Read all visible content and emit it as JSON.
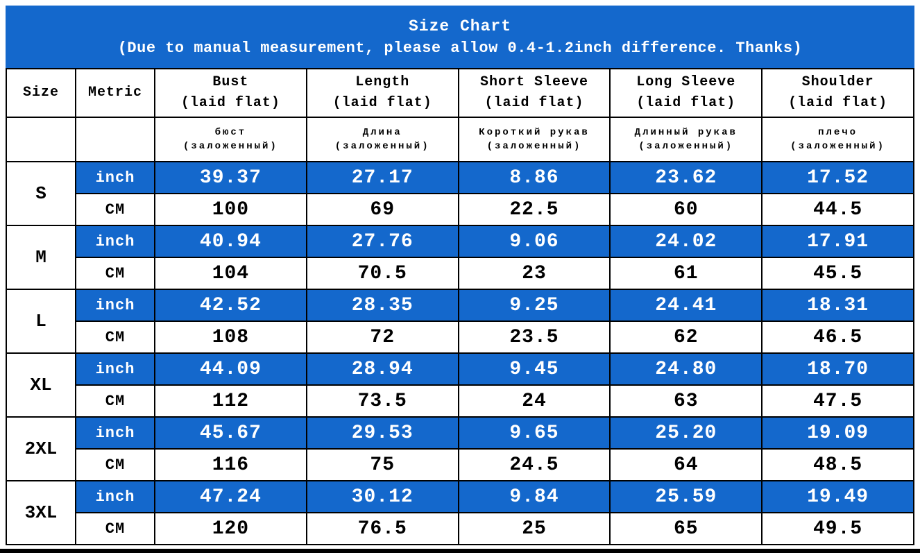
{
  "colors": {
    "banner_bg": "#1468cc",
    "banner_text": "#ffffff",
    "inch_row_bg": "#1468cc",
    "inch_row_text": "#ffffff",
    "border": "#000000"
  },
  "chart_data": {
    "type": "table",
    "title": "Size Chart",
    "subtitle": "(Due to manual measurement, please allow 0.4-1.2inch difference. Thanks)",
    "columns": [
      {
        "en": "Size",
        "en_sub": "",
        "ru": "",
        "ru_sub": ""
      },
      {
        "en": "Metric",
        "en_sub": "",
        "ru": "",
        "ru_sub": ""
      },
      {
        "en": "Bust",
        "en_sub": "(laid flat)",
        "ru": "бюст",
        "ru_sub": "(заложенный)"
      },
      {
        "en": "Length",
        "en_sub": "(laid flat)",
        "ru": "Длина",
        "ru_sub": "(заложенный)"
      },
      {
        "en": "Short Sleeve",
        "en_sub": "(laid flat)",
        "ru": "Короткий рукав",
        "ru_sub": "(заложенный)"
      },
      {
        "en": "Long Sleeve",
        "en_sub": "(laid flat)",
        "ru": "Длинный рукав",
        "ru_sub": "(заложенный)"
      },
      {
        "en": "Shoulder",
        "en_sub": "(laid flat)",
        "ru": "плечо",
        "ru_sub": "(заложенный)"
      }
    ],
    "metric_labels": {
      "inch": "inch",
      "cm": "CM"
    },
    "sizes": [
      {
        "size": "S",
        "inch": [
          "39.37",
          "27.17",
          "8.86",
          "23.62",
          "17.52"
        ],
        "cm": [
          "100",
          "69",
          "22.5",
          "60",
          "44.5"
        ]
      },
      {
        "size": "M",
        "inch": [
          "40.94",
          "27.76",
          "9.06",
          "24.02",
          "17.91"
        ],
        "cm": [
          "104",
          "70.5",
          "23",
          "61",
          "45.5"
        ]
      },
      {
        "size": "L",
        "inch": [
          "42.52",
          "28.35",
          "9.25",
          "24.41",
          "18.31"
        ],
        "cm": [
          "108",
          "72",
          "23.5",
          "62",
          "46.5"
        ]
      },
      {
        "size": "XL",
        "inch": [
          "44.09",
          "28.94",
          "9.45",
          "24.80",
          "18.70"
        ],
        "cm": [
          "112",
          "73.5",
          "24",
          "63",
          "47.5"
        ]
      },
      {
        "size": "2XL",
        "inch": [
          "45.67",
          "29.53",
          "9.65",
          "25.20",
          "19.09"
        ],
        "cm": [
          "116",
          "75",
          "24.5",
          "64",
          "48.5"
        ]
      },
      {
        "size": "3XL",
        "inch": [
          "47.24",
          "30.12",
          "9.84",
          "25.59",
          "19.49"
        ],
        "cm": [
          "120",
          "76.5",
          "25",
          "65",
          "49.5"
        ]
      }
    ]
  }
}
